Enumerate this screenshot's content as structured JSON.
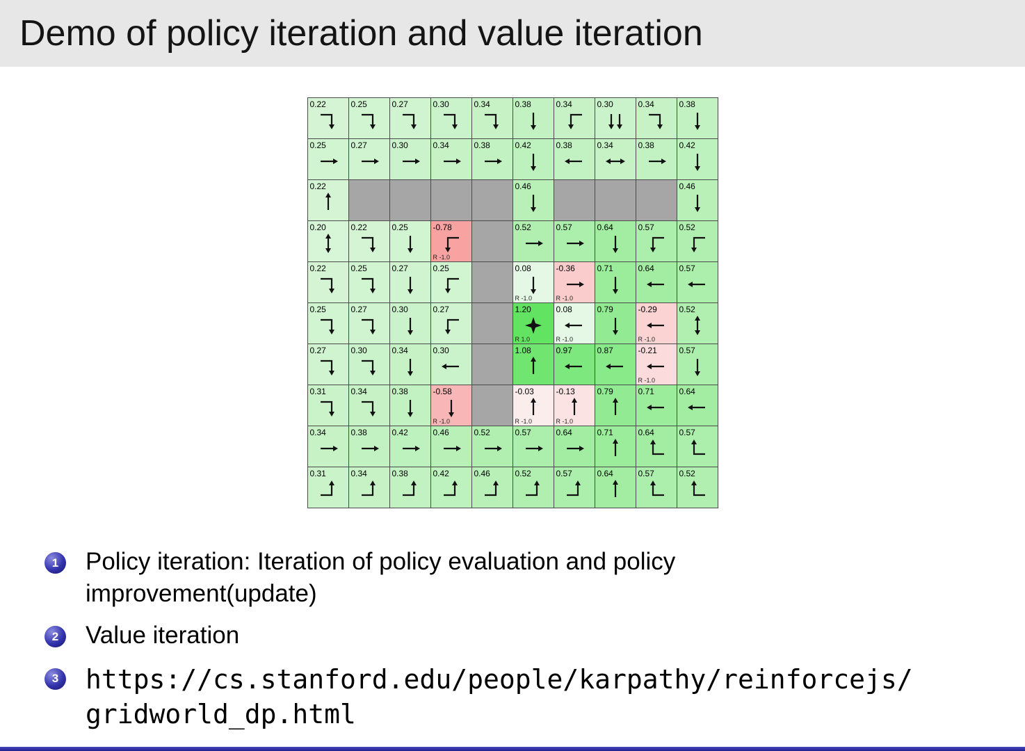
{
  "title": "Demo of policy iteration and value iteration",
  "bullets": [
    {
      "num": "1",
      "lines": [
        "Policy iteration: Iteration of policy evaluation and policy improvement(update)"
      ],
      "mono": false
    },
    {
      "num": "2",
      "lines": [
        "Value iteration"
      ],
      "mono": false
    },
    {
      "num": "3",
      "lines": [
        "https://cs.stanford.edu/people/karpathy/reinforcejs/",
        "gridworld_dp.html"
      ],
      "mono": true
    }
  ],
  "colors": {
    "header_bg": "#e7e7e7",
    "wall": "#a6a6a6",
    "grid_line": "#4a4a4a",
    "badge_blue": "#3434ad",
    "footer_blue": "#2f2fa8",
    "positive_value_green": "#62e462",
    "negative_value_pink": "#f7a2a2"
  },
  "grid": {
    "rows": 10,
    "cols": 10,
    "max_abs_value": 1.2,
    "cells": [
      [
        {
          "v": "0.22",
          "a": "rd"
        },
        {
          "v": "0.25",
          "a": "rd"
        },
        {
          "v": "0.27",
          "a": "rd"
        },
        {
          "v": "0.30",
          "a": "rd"
        },
        {
          "v": "0.34",
          "a": "rd"
        },
        {
          "v": "0.38",
          "a": "d"
        },
        {
          "v": "0.34",
          "a": "ld"
        },
        {
          "v": "0.30",
          "a": "dd"
        },
        {
          "v": "0.34",
          "a": "rd"
        },
        {
          "v": "0.38",
          "a": "d"
        }
      ],
      [
        {
          "v": "0.25",
          "a": "r"
        },
        {
          "v": "0.27",
          "a": "r"
        },
        {
          "v": "0.30",
          "a": "r"
        },
        {
          "v": "0.34",
          "a": "r"
        },
        {
          "v": "0.38",
          "a": "r"
        },
        {
          "v": "0.42",
          "a": "d"
        },
        {
          "v": "0.38",
          "a": "l"
        },
        {
          "v": "0.34",
          "a": "lr"
        },
        {
          "v": "0.38",
          "a": "r"
        },
        {
          "v": "0.42",
          "a": "d"
        }
      ],
      [
        {
          "v": "0.22",
          "a": "u"
        },
        {
          "w": true
        },
        {
          "w": true
        },
        {
          "w": true
        },
        {
          "w": true
        },
        {
          "v": "0.46",
          "a": "d"
        },
        {
          "w": true
        },
        {
          "w": true
        },
        {
          "w": true
        },
        {
          "v": "0.46",
          "a": "d"
        }
      ],
      [
        {
          "v": "0.20",
          "a": "ud"
        },
        {
          "v": "0.22",
          "a": "rd"
        },
        {
          "v": "0.25",
          "a": "d"
        },
        {
          "v": "-0.78",
          "a": "ld",
          "r": "R -1.0"
        },
        {
          "w": true
        },
        {
          "v": "0.52",
          "a": "r"
        },
        {
          "v": "0.57",
          "a": "r"
        },
        {
          "v": "0.64",
          "a": "d"
        },
        {
          "v": "0.57",
          "a": "ld"
        },
        {
          "v": "0.52",
          "a": "ld"
        }
      ],
      [
        {
          "v": "0.22",
          "a": "rd"
        },
        {
          "v": "0.25",
          "a": "rd"
        },
        {
          "v": "0.27",
          "a": "d"
        },
        {
          "v": "0.25",
          "a": "ld"
        },
        {
          "w": true
        },
        {
          "v": "0.08",
          "a": "d",
          "r": "R -1.0"
        },
        {
          "v": "-0.36",
          "a": "r",
          "r": "R -1.0"
        },
        {
          "v": "0.71",
          "a": "d"
        },
        {
          "v": "0.64",
          "a": "l"
        },
        {
          "v": "0.57",
          "a": "l"
        }
      ],
      [
        {
          "v": "0.25",
          "a": "rd"
        },
        {
          "v": "0.27",
          "a": "rd"
        },
        {
          "v": "0.30",
          "a": "d"
        },
        {
          "v": "0.27",
          "a": "ld"
        },
        {
          "w": true
        },
        {
          "v": "1.20",
          "a": "star",
          "r": "R 1.0"
        },
        {
          "v": "0.08",
          "a": "l",
          "r": "R -1.0"
        },
        {
          "v": "0.79",
          "a": "d"
        },
        {
          "v": "-0.29",
          "a": "l",
          "r": "R -1.0"
        },
        {
          "v": "0.52",
          "a": "ud"
        }
      ],
      [
        {
          "v": "0.27",
          "a": "rd"
        },
        {
          "v": "0.30",
          "a": "rd"
        },
        {
          "v": "0.34",
          "a": "d"
        },
        {
          "v": "0.30",
          "a": "l"
        },
        {
          "w": true
        },
        {
          "v": "1.08",
          "a": "u"
        },
        {
          "v": "0.97",
          "a": "l"
        },
        {
          "v": "0.87",
          "a": "l"
        },
        {
          "v": "-0.21",
          "a": "l",
          "r": "R -1.0"
        },
        {
          "v": "0.57",
          "a": "d"
        }
      ],
      [
        {
          "v": "0.31",
          "a": "rd"
        },
        {
          "v": "0.34",
          "a": "rd"
        },
        {
          "v": "0.38",
          "a": "d"
        },
        {
          "v": "-0.58",
          "a": "d",
          "r": "R -1.0"
        },
        {
          "w": true
        },
        {
          "v": "-0.03",
          "a": "u",
          "r": "R -1.0"
        },
        {
          "v": "-0.13",
          "a": "u",
          "r": "R -1.0"
        },
        {
          "v": "0.79",
          "a": "u"
        },
        {
          "v": "0.71",
          "a": "l"
        },
        {
          "v": "0.64",
          "a": "l"
        }
      ],
      [
        {
          "v": "0.34",
          "a": "r"
        },
        {
          "v": "0.38",
          "a": "r"
        },
        {
          "v": "0.42",
          "a": "r"
        },
        {
          "v": "0.46",
          "a": "r"
        },
        {
          "v": "0.52",
          "a": "r"
        },
        {
          "v": "0.57",
          "a": "r"
        },
        {
          "v": "0.64",
          "a": "r"
        },
        {
          "v": "0.71",
          "a": "u"
        },
        {
          "v": "0.64",
          "a": "lu"
        },
        {
          "v": "0.57",
          "a": "lu"
        }
      ],
      [
        {
          "v": "0.31",
          "a": "ru"
        },
        {
          "v": "0.34",
          "a": "ru"
        },
        {
          "v": "0.38",
          "a": "ru"
        },
        {
          "v": "0.42",
          "a": "ru"
        },
        {
          "v": "0.46",
          "a": "ru"
        },
        {
          "v": "0.52",
          "a": "ru"
        },
        {
          "v": "0.57",
          "a": "ru"
        },
        {
          "v": "0.64",
          "a": "u"
        },
        {
          "v": "0.57",
          "a": "lu"
        },
        {
          "v": "0.52",
          "a": "lu"
        }
      ]
    ]
  }
}
